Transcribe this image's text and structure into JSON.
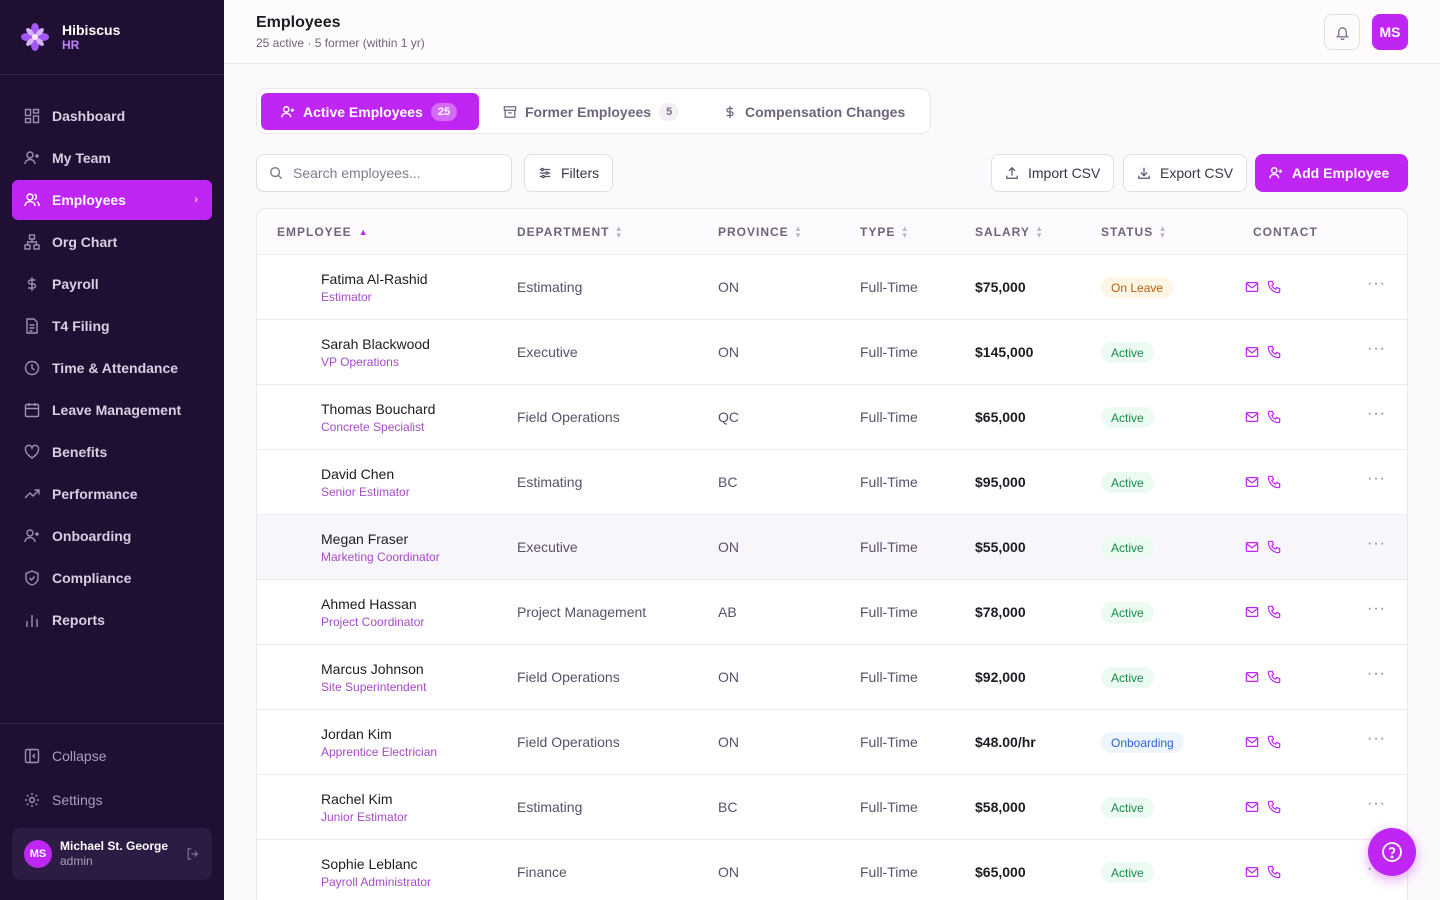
{
  "brand": {
    "name": "Hibiscus",
    "sub": "HR"
  },
  "sidebar": {
    "items": [
      {
        "label": "Dashboard",
        "icon": "dashboard-icon"
      },
      {
        "label": "My Team",
        "icon": "user-icon"
      },
      {
        "label": "Employees",
        "icon": "users-icon",
        "active": true
      },
      {
        "label": "Org Chart",
        "icon": "org-chart-icon"
      },
      {
        "label": "Payroll",
        "icon": "dollar-icon"
      },
      {
        "label": "T4 Filing",
        "icon": "document-icon"
      },
      {
        "label": "Time & Attendance",
        "icon": "clock-icon"
      },
      {
        "label": "Leave Management",
        "icon": "calendar-icon"
      },
      {
        "label": "Benefits",
        "icon": "heart-icon"
      },
      {
        "label": "Performance",
        "icon": "trend-icon"
      },
      {
        "label": "Onboarding",
        "icon": "user-plus-icon"
      },
      {
        "label": "Compliance",
        "icon": "shield-icon"
      },
      {
        "label": "Reports",
        "icon": "bar-chart-icon"
      }
    ],
    "collapse_label": "Collapse",
    "settings_label": "Settings",
    "user": {
      "initials": "MS",
      "name": "Michael St. George",
      "role": "admin"
    }
  },
  "header": {
    "title": "Employees",
    "subtitle": "25 active · 5 former (within 1 yr)",
    "avatar_initials": "MS"
  },
  "tabs": [
    {
      "label": "Active Employees",
      "count": "25",
      "active": true
    },
    {
      "label": "Former Employees",
      "count": "5"
    },
    {
      "label": "Compensation Changes"
    }
  ],
  "toolbar": {
    "search_placeholder": "Search employees...",
    "filters_label": "Filters",
    "import_label": "Import CSV",
    "export_label": "Export CSV",
    "add_label": "Add Employee"
  },
  "table": {
    "columns": [
      "EMPLOYEE",
      "DEPARTMENT",
      "PROVINCE",
      "TYPE",
      "SALARY",
      "STATUS",
      "CONTACT"
    ],
    "rows": [
      {
        "name": "Fatima Al-Rashid",
        "role": "Estimator",
        "department": "Estimating",
        "province": "ON",
        "type": "Full-Time",
        "salary": "$75,000",
        "status": "On Leave"
      },
      {
        "name": "Sarah Blackwood",
        "role": "VP Operations",
        "department": "Executive",
        "province": "ON",
        "type": "Full-Time",
        "salary": "$145,000",
        "status": "Active"
      },
      {
        "name": "Thomas Bouchard",
        "role": "Concrete Specialist",
        "department": "Field Operations",
        "province": "QC",
        "type": "Full-Time",
        "salary": "$65,000",
        "status": "Active"
      },
      {
        "name": "David Chen",
        "role": "Senior Estimator",
        "department": "Estimating",
        "province": "BC",
        "type": "Full-Time",
        "salary": "$95,000",
        "status": "Active"
      },
      {
        "name": "Megan Fraser",
        "role": "Marketing Coordinator",
        "department": "Executive",
        "province": "ON",
        "type": "Full-Time",
        "salary": "$55,000",
        "status": "Active"
      },
      {
        "name": "Ahmed Hassan",
        "role": "Project Coordinator",
        "department": "Project Management",
        "province": "AB",
        "type": "Full-Time",
        "salary": "$78,000",
        "status": "Active"
      },
      {
        "name": "Marcus Johnson",
        "role": "Site Superintendent",
        "department": "Field Operations",
        "province": "ON",
        "type": "Full-Time",
        "salary": "$92,000",
        "status": "Active"
      },
      {
        "name": "Jordan Kim",
        "role": "Apprentice Electrician",
        "department": "Field Operations",
        "province": "ON",
        "type": "Full-Time",
        "salary": "$48.00/hr",
        "status": "Onboarding"
      },
      {
        "name": "Rachel Kim",
        "role": "Junior Estimator",
        "department": "Estimating",
        "province": "BC",
        "type": "Full-Time",
        "salary": "$58,000",
        "status": "Active"
      },
      {
        "name": "Sophie Leblanc",
        "role": "Payroll Administrator",
        "department": "Finance",
        "province": "ON",
        "type": "Full-Time",
        "salary": "$65,000",
        "status": "Active"
      }
    ]
  },
  "colors": {
    "accent": "#c026f3",
    "sidebar_bg": "#1e0f33",
    "active_status": "#188a4a",
    "leave_status": "#b85e0a",
    "onboarding_status": "#2a64d8"
  }
}
